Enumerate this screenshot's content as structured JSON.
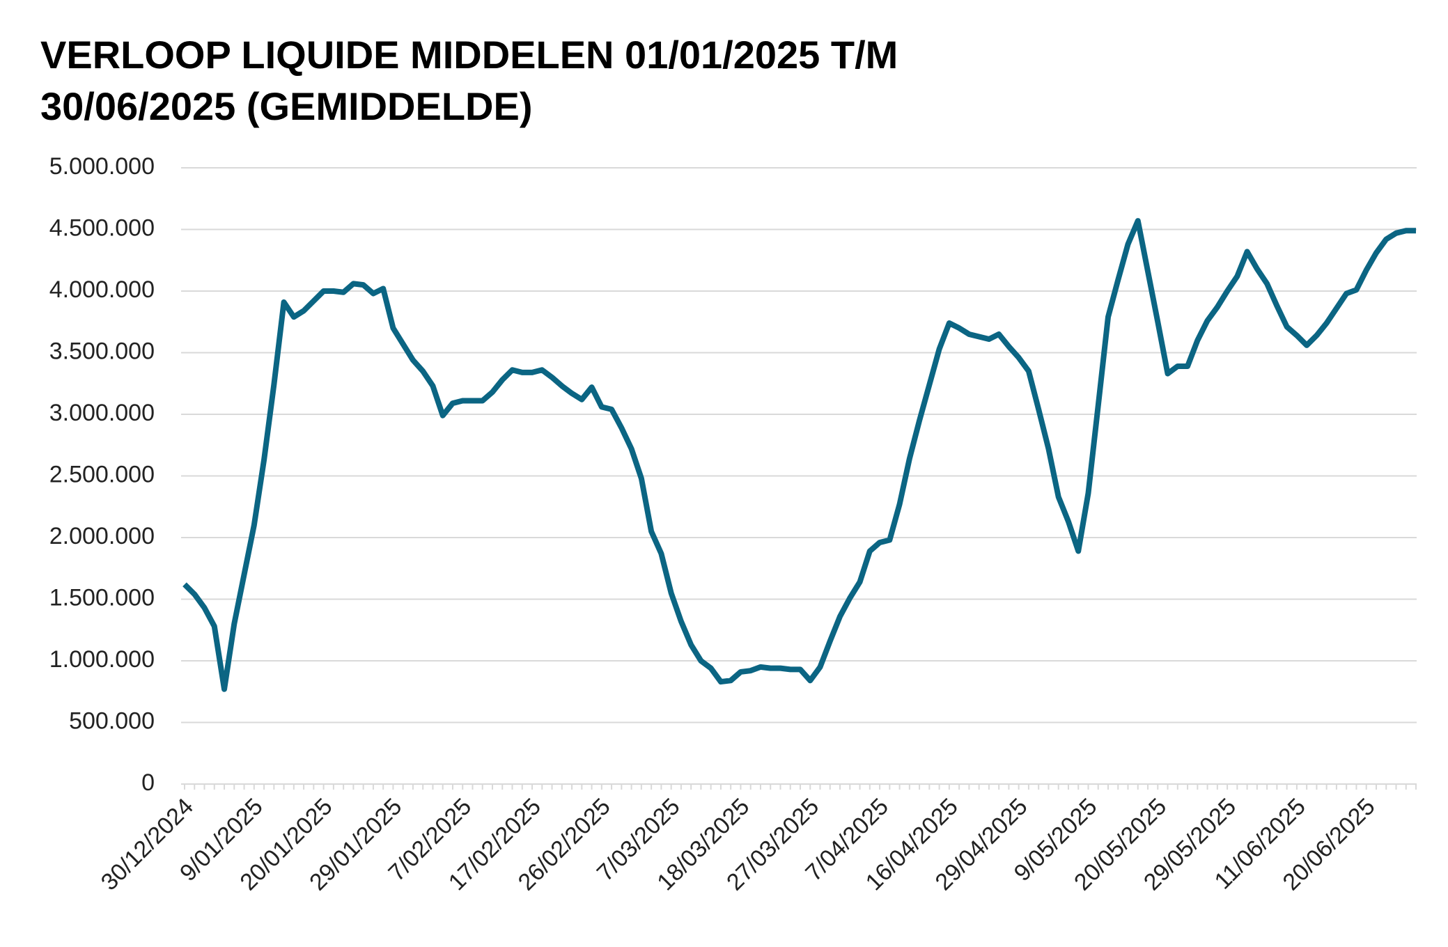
{
  "chart_data": {
    "type": "line",
    "title": "VERLOOP LIQUIDE MIDDELEN 01/01/2025 T/M 30/06/2025 (GEMIDDELDE)",
    "categories": [
      "30/12/2024",
      null,
      null,
      null,
      null,
      null,
      null,
      "9/01/2025",
      null,
      null,
      null,
      null,
      null,
      null,
      "20/01/2025",
      null,
      null,
      null,
      null,
      null,
      null,
      "29/01/2025",
      null,
      null,
      null,
      null,
      null,
      null,
      "7/02/2025",
      null,
      null,
      null,
      null,
      null,
      null,
      "17/02/2025",
      null,
      null,
      null,
      null,
      null,
      null,
      "26/02/2025",
      null,
      null,
      null,
      null,
      null,
      null,
      "7/03/2025",
      null,
      null,
      null,
      null,
      null,
      null,
      "18/03/2025",
      null,
      null,
      null,
      null,
      null,
      null,
      "27/03/2025",
      null,
      null,
      null,
      null,
      null,
      null,
      "7/04/2025",
      null,
      null,
      null,
      null,
      null,
      null,
      "16/04/2025",
      null,
      null,
      null,
      null,
      null,
      null,
      "29/04/2025",
      null,
      null,
      null,
      null,
      null,
      null,
      "9/05/2025",
      null,
      null,
      null,
      null,
      null,
      null,
      "20/05/2025",
      null,
      null,
      null,
      null,
      null,
      null,
      "29/05/2025",
      null,
      null,
      null,
      null,
      null,
      null,
      "11/06/2025",
      null,
      null,
      null,
      null,
      null,
      null,
      "20/06/2025",
      null,
      null,
      null,
      null,
      null
    ],
    "values": [
      1620000,
      1540000,
      1430000,
      1280000,
      770000,
      1300000,
      1700000,
      2100000,
      2630000,
      3240000,
      3910000,
      3790000,
      3840000,
      3920000,
      4000000,
      4000000,
      3990000,
      4060000,
      4050000,
      3980000,
      4020000,
      3700000,
      3570000,
      3440000,
      3350000,
      3230000,
      2990000,
      3090000,
      3110000,
      3110000,
      3110000,
      3180000,
      3280000,
      3360000,
      3340000,
      3340000,
      3360000,
      3300000,
      3230000,
      3170000,
      3120000,
      3220000,
      3060000,
      3040000,
      2890000,
      2720000,
      2480000,
      2050000,
      1870000,
      1550000,
      1320000,
      1130000,
      1000000,
      940000,
      830000,
      840000,
      910000,
      920000,
      950000,
      940000,
      940000,
      930000,
      930000,
      840000,
      950000,
      1160000,
      1360000,
      1510000,
      1640000,
      1890000,
      1960000,
      1980000,
      2270000,
      2640000,
      2950000,
      3240000,
      3530000,
      3740000,
      3700000,
      3650000,
      3630000,
      3610000,
      3650000,
      3550000,
      3460000,
      3350000,
      3040000,
      2720000,
      2330000,
      2130000,
      1890000,
      2360000,
      3070000,
      3790000,
      4090000,
      4380000,
      4570000,
      4160000,
      3750000,
      3330000,
      3390000,
      3390000,
      3600000,
      3760000,
      3870000,
      4000000,
      4120000,
      4320000,
      4180000,
      4060000,
      3880000,
      3710000,
      3640000,
      3560000,
      3640000,
      3740000,
      3860000,
      3980000,
      4010000,
      4170000,
      4310000,
      4420000,
      4470000,
      4490000,
      4490000
    ],
    "color": "#0b6583",
    "ylim": [
      0,
      5000000
    ],
    "yticks": [
      0,
      {
        "value": 500000,
        "label": "500.000"
      },
      {
        "value": 1000000,
        "label": "1.000.000"
      },
      {
        "value": 1500000,
        "label": "1.500.000"
      },
      {
        "value": 2000000,
        "label": "2.000.000"
      },
      {
        "value": 2500000,
        "label": "2.500.000"
      },
      {
        "value": 3000000,
        "label": "3.000.000"
      },
      {
        "value": 3500000,
        "label": "3.500.000"
      },
      {
        "value": 4000000,
        "label": "4.000.000"
      },
      {
        "value": 4500000,
        "label": "4.500.000"
      },
      {
        "value": 5000000,
        "label": "5.000.000"
      }
    ],
    "grid": true
  }
}
